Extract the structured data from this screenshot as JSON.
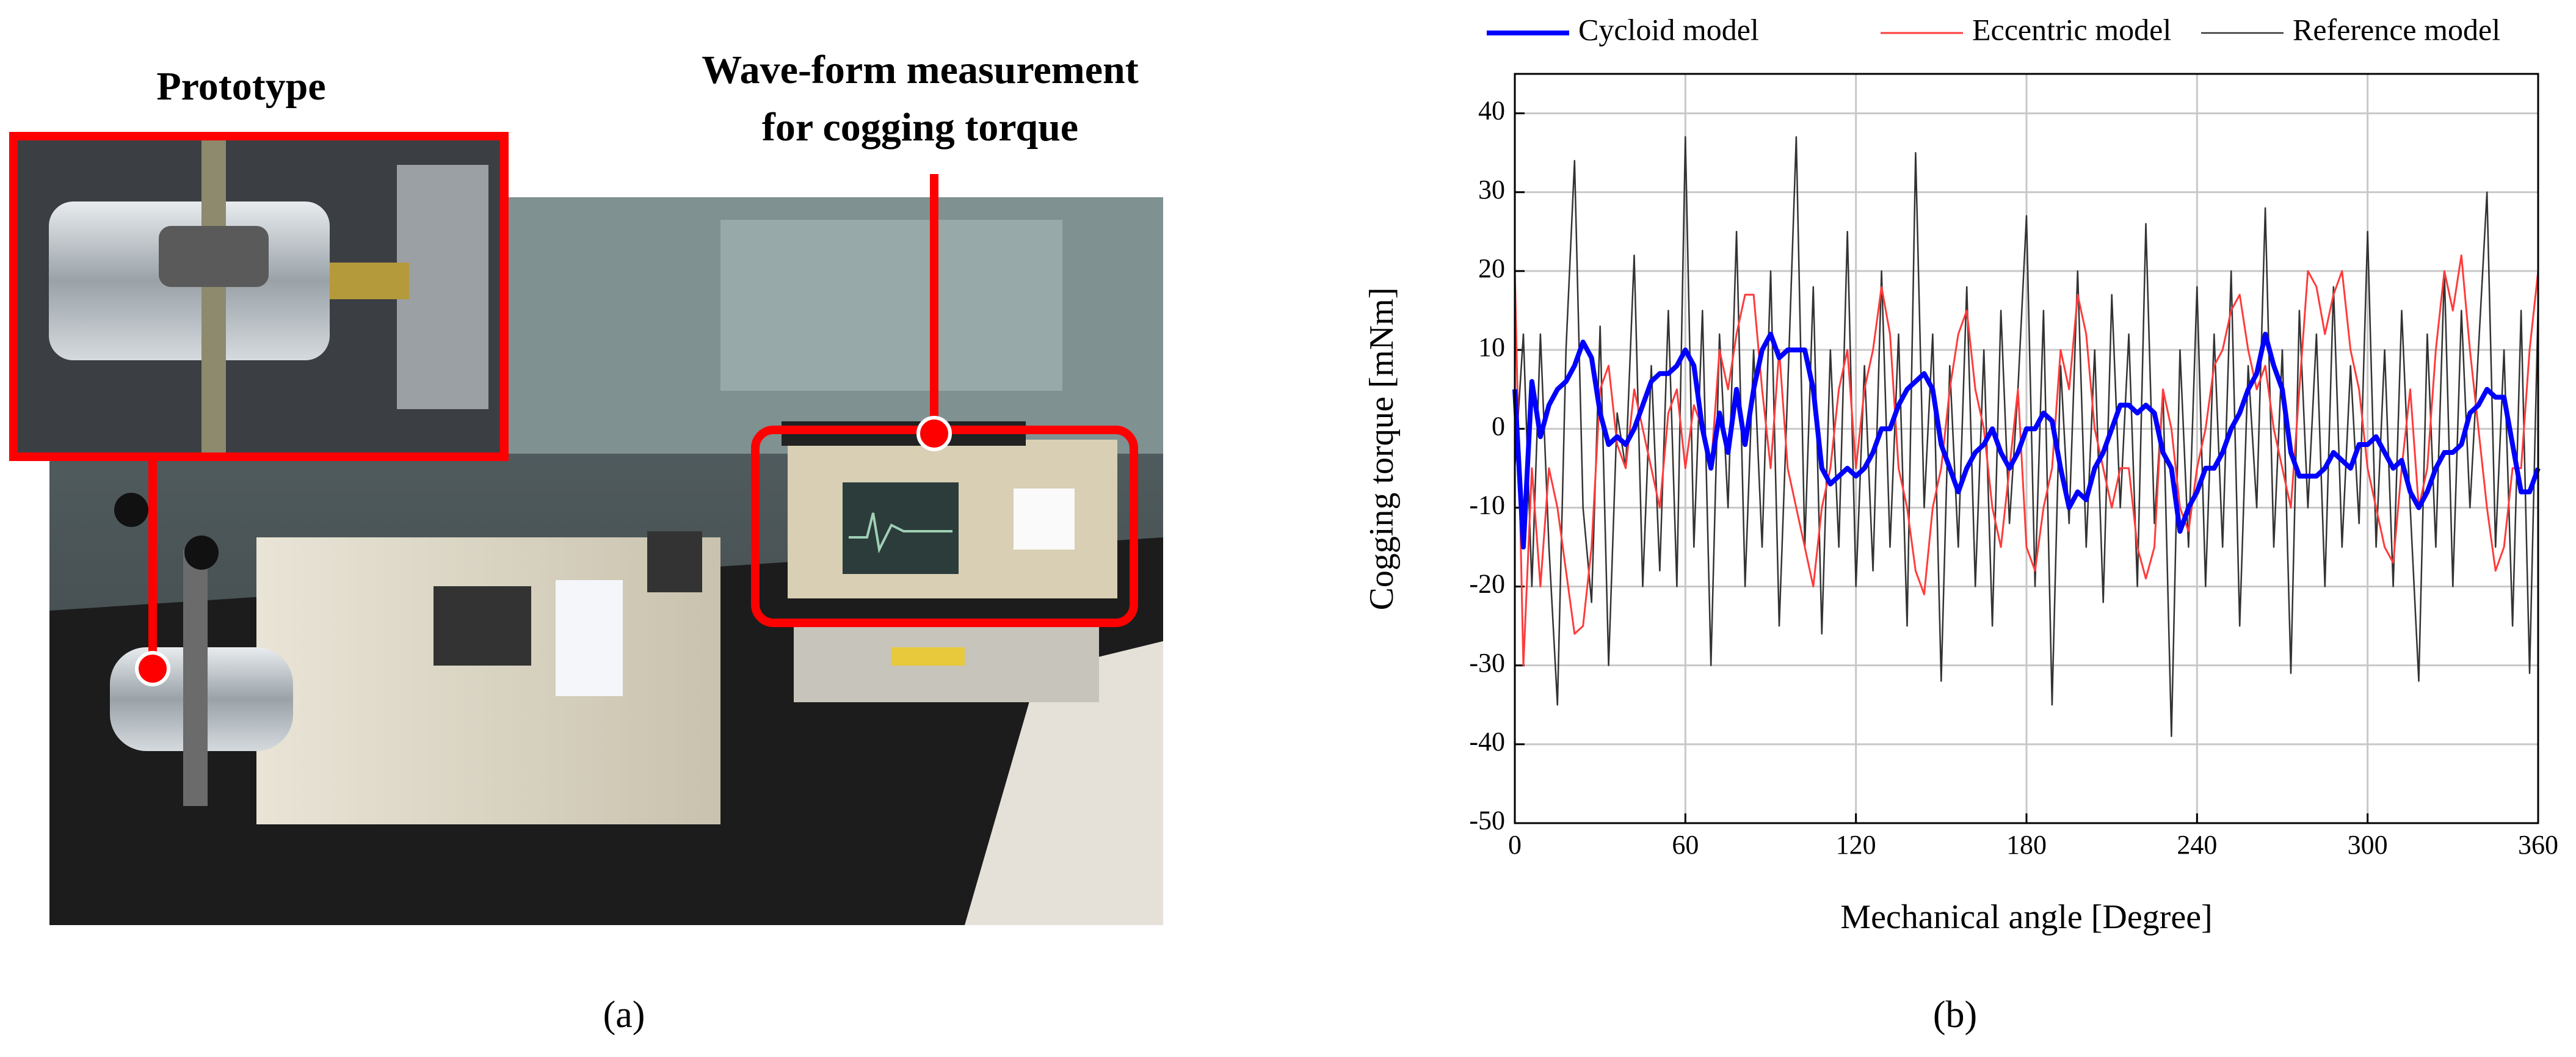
{
  "panel_a": {
    "label": "(a)",
    "annotations": [
      "Prototype",
      "Wave-form measurement",
      "for cogging torque"
    ]
  },
  "panel_b": {
    "label": "(b)"
  },
  "chart_data": {
    "type": "line",
    "xlabel": "Mechanical angle [Degree]",
    "ylabel": "Cogging torque [mNm]",
    "xlim": [
      0,
      360
    ],
    "xticks": [
      0,
      60,
      120,
      180,
      240,
      300,
      360
    ],
    "ylim": [
      -50,
      45
    ],
    "yticks": [
      -50,
      -40,
      -30,
      -20,
      -10,
      0,
      10,
      20,
      30,
      40
    ],
    "grid": true,
    "legend": "top",
    "x": [
      0,
      3,
      6,
      9,
      12,
      15,
      18,
      21,
      24,
      27,
      30,
      33,
      36,
      39,
      42,
      45,
      48,
      51,
      54,
      57,
      60,
      63,
      66,
      69,
      72,
      75,
      78,
      81,
      84,
      87,
      90,
      93,
      96,
      99,
      102,
      105,
      108,
      111,
      114,
      117,
      120,
      123,
      126,
      129,
      132,
      135,
      138,
      141,
      144,
      147,
      150,
      153,
      156,
      159,
      162,
      165,
      168,
      171,
      174,
      177,
      180,
      183,
      186,
      189,
      192,
      195,
      198,
      201,
      204,
      207,
      210,
      213,
      216,
      219,
      222,
      225,
      228,
      231,
      234,
      237,
      240,
      243,
      246,
      249,
      252,
      255,
      258,
      261,
      264,
      267,
      270,
      273,
      276,
      279,
      282,
      285,
      288,
      291,
      294,
      297,
      300,
      303,
      306,
      309,
      312,
      315,
      318,
      321,
      324,
      327,
      330,
      333,
      336,
      339,
      342,
      345,
      348,
      351,
      354,
      357,
      360
    ],
    "series": [
      {
        "name": "Cycloid model",
        "color": "#0000ff",
        "values": [
          5,
          -15,
          6,
          -1,
          3,
          5,
          6,
          8,
          11,
          9,
          2,
          -2,
          -1,
          -2,
          0,
          3,
          6,
          7,
          7,
          8,
          10,
          8,
          0,
          -5,
          2,
          -3,
          5,
          -2,
          5,
          10,
          12,
          9,
          10,
          10,
          10,
          5,
          -5,
          -7,
          -6,
          -5,
          -6,
          -5,
          -3,
          0,
          0,
          3,
          5,
          6,
          7,
          5,
          -2,
          -5,
          -8,
          -5,
          -3,
          -2,
          0,
          -3,
          -5,
          -3,
          0,
          0,
          2,
          1,
          -5,
          -10,
          -8,
          -9,
          -5,
          -3,
          0,
          3,
          3,
          2,
          3,
          2,
          -3,
          -5,
          -13,
          -10,
          -8,
          -5,
          -5,
          -3,
          0,
          2,
          5,
          7,
          12,
          8,
          5,
          -3,
          -6,
          -6,
          -6,
          -5,
          -3,
          -4,
          -5,
          -2,
          -2,
          -1,
          -3,
          -5,
          -4,
          -8,
          -10,
          -8,
          -5,
          -3,
          -3,
          -2,
          2,
          3,
          5,
          4,
          4,
          -2,
          -8,
          -8,
          -5
        ]
      },
      {
        "name": "Eccentric model",
        "color": "#ff3b3b",
        "values": [
          20,
          -30,
          -5,
          -20,
          -5,
          -10,
          -18,
          -26,
          -25,
          -15,
          5,
          8,
          -2,
          -5,
          5,
          0,
          -5,
          -10,
          2,
          5,
          -5,
          3,
          0,
          -5,
          10,
          5,
          12,
          17,
          17,
          5,
          -5,
          10,
          -5,
          -10,
          -15,
          -20,
          -10,
          -5,
          5,
          10,
          -5,
          5,
          10,
          18,
          12,
          -5,
          -10,
          -18,
          -21,
          -10,
          -5,
          5,
          12,
          15,
          5,
          0,
          -10,
          -15,
          -5,
          5,
          -15,
          -18,
          -10,
          -5,
          10,
          5,
          17,
          12,
          0,
          -5,
          -10,
          -5,
          -5,
          -15,
          -19,
          -15,
          5,
          0,
          -10,
          -13,
          -5,
          0,
          8,
          10,
          15,
          17,
          10,
          5,
          8,
          0,
          -5,
          -10,
          5,
          20,
          18,
          12,
          17,
          20,
          10,
          5,
          -5,
          -10,
          -15,
          -17,
          -5,
          5,
          -10,
          -5,
          10,
          20,
          15,
          22,
          10,
          0,
          -10,
          -18,
          -15,
          -5,
          -5,
          10,
          20
        ]
      },
      {
        "name": "Reference model",
        "color": "#333333",
        "values": [
          -5,
          12,
          -20,
          12,
          -15,
          -35,
          10,
          34,
          -10,
          -22,
          13,
          -30,
          2,
          -5,
          22,
          -20,
          8,
          -18,
          15,
          -20,
          37,
          -15,
          15,
          -30,
          12,
          -10,
          25,
          -20,
          10,
          -15,
          20,
          -25,
          5,
          37,
          -15,
          18,
          -26,
          10,
          -15,
          25,
          -20,
          8,
          -18,
          20,
          -15,
          12,
          -25,
          35,
          -10,
          12,
          -32,
          8,
          -15,
          18,
          -20,
          10,
          -25,
          15,
          -12,
          5,
          27,
          -20,
          15,
          -35,
          8,
          -12,
          20,
          -15,
          10,
          -22,
          17,
          -10,
          12,
          -20,
          26,
          -12,
          5,
          -39,
          10,
          -15,
          18,
          -20,
          12,
          -15,
          20,
          -25,
          8,
          -10,
          28,
          -15,
          10,
          -31,
          15,
          -10,
          12,
          -20,
          18,
          -15,
          8,
          -12,
          25,
          -15,
          10,
          -20,
          15,
          -10,
          -32,
          12,
          -15,
          20,
          -20,
          15,
          -10,
          10,
          30,
          -15,
          10,
          -25,
          15,
          -31,
          16
        ]
      }
    ]
  }
}
